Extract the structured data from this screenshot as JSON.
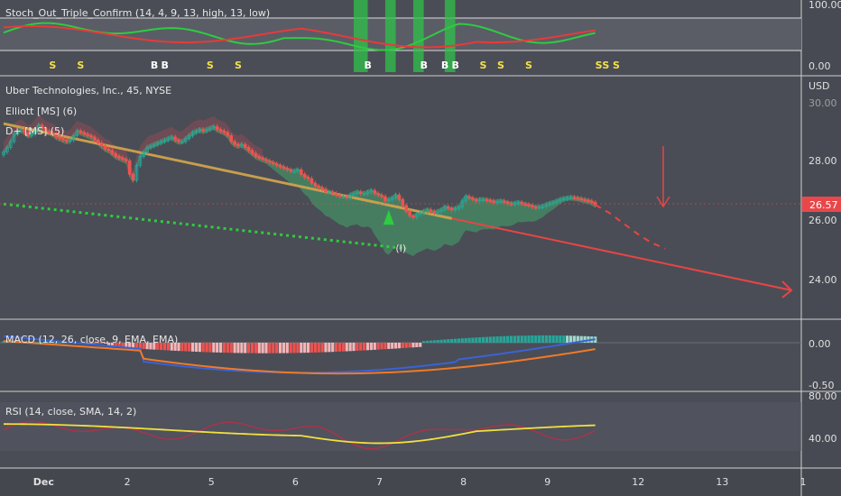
{
  "stoch_panel": {
    "label": "Stoch_Out_Triple_Confirm (14, 4, 9, 13, high, 13, low)",
    "axis": [
      "100.00",
      "0.00"
    ],
    "signals": [
      {
        "t": "S",
        "i": 14,
        "c": "#f5e14a"
      },
      {
        "t": "S",
        "i": 22,
        "c": "#f5e14a"
      },
      {
        "t": "B",
        "i": 43,
        "c": "#ffffff"
      },
      {
        "t": "B",
        "i": 46,
        "c": "#ffffff"
      },
      {
        "t": "S",
        "i": 59,
        "c": "#f5e14a"
      },
      {
        "t": "S",
        "i": 67,
        "c": "#f5e14a"
      },
      {
        "t": "B",
        "i": 104,
        "c": "#ffffff"
      },
      {
        "t": "B",
        "i": 120,
        "c": "#ffffff"
      },
      {
        "t": "B",
        "i": 126,
        "c": "#ffffff"
      },
      {
        "t": "B",
        "i": 129,
        "c": "#ffffff"
      },
      {
        "t": "S",
        "i": 137,
        "c": "#f5e14a"
      },
      {
        "t": "S",
        "i": 142,
        "c": "#f5e14a"
      },
      {
        "t": "S",
        "i": 150,
        "c": "#f5e14a"
      },
      {
        "t": "S",
        "i": 170,
        "c": "#f5e14a"
      },
      {
        "t": "S",
        "i": 172,
        "c": "#f5e14a"
      },
      {
        "t": "S",
        "i": 175,
        "c": "#f5e14a"
      }
    ]
  },
  "price_panel": {
    "title": "Uber Technologies, Inc., 45, NYSE",
    "currency": "USD",
    "indicators": [
      "Elliott [MS] (6)",
      "D+ [MS] (5)"
    ],
    "axis": [
      "28.00",
      "26.00",
      "24.00"
    ],
    "axis_partial": "30.00",
    "last_price": "26.57",
    "last_price_color": "#e8474a",
    "wave_label": "(I)",
    "up_color": "#26a69a",
    "down_color": "#ef5350"
  },
  "macd_panel": {
    "label": "MACD (12, 26, close, 9, EMA, EMA)",
    "axis": [
      "0.00",
      "-0.50"
    ]
  },
  "rsi_panel": {
    "label": "RSI (14, close, SMA, 14, 2)",
    "axis": [
      "80.00",
      "40.00"
    ]
  },
  "time_axis": {
    "labels": [
      {
        "text": "Dec",
        "i": 10
      },
      {
        "text": "2",
        "i": 36
      },
      {
        "text": "5",
        "i": 60
      },
      {
        "text": "6",
        "i": 84
      },
      {
        "text": "7",
        "i": 108
      },
      {
        "text": "8",
        "i": 132
      },
      {
        "text": "9",
        "i": 156
      },
      {
        "text": "12",
        "i": 181
      },
      {
        "text": "13",
        "i": 205
      },
      {
        "text": "1",
        "i": 229
      }
    ]
  },
  "chart_data": {
    "type": "candlestick",
    "closes": [
      28.35,
      28.5,
      28.7,
      28.95,
      29.05,
      29.1,
      29.0,
      28.9,
      28.95,
      29.1,
      29.25,
      29.15,
      29.05,
      29.0,
      28.95,
      28.85,
      28.8,
      28.75,
      28.7,
      28.75,
      28.9,
      29.05,
      29.0,
      28.95,
      28.9,
      28.85,
      28.75,
      28.65,
      28.55,
      28.45,
      28.4,
      28.3,
      28.2,
      28.15,
      28.1,
      28.05,
      27.6,
      27.4,
      27.9,
      28.2,
      28.35,
      28.5,
      28.55,
      28.6,
      28.65,
      28.7,
      28.75,
      28.8,
      28.85,
      28.75,
      28.7,
      28.7,
      28.8,
      28.9,
      29.0,
      29.05,
      29.1,
      29.05,
      29.1,
      29.15,
      29.2,
      29.1,
      29.05,
      29.0,
      28.9,
      28.7,
      28.6,
      28.55,
      28.6,
      28.5,
      28.4,
      28.3,
      28.2,
      28.15,
      28.1,
      28.05,
      28.0,
      27.95,
      27.9,
      27.85,
      27.8,
      27.75,
      27.7,
      27.7,
      27.75,
      27.6,
      27.5,
      27.45,
      27.3,
      27.2,
      27.15,
      27.1,
      27.0,
      27.0,
      26.95,
      26.9,
      26.85,
      26.85,
      26.8,
      26.9,
      26.95,
      27.0,
      26.95,
      26.95,
      27.0,
      27.05,
      26.95,
      26.9,
      26.85,
      26.7,
      26.75,
      26.8,
      26.9,
      26.75,
      26.55,
      26.35,
      26.2,
      26.15,
      26.25,
      26.3,
      26.35,
      26.4,
      26.35,
      26.3,
      26.35,
      26.4,
      26.5,
      26.45,
      26.4,
      26.45,
      26.5,
      26.7,
      26.85,
      26.8,
      26.75,
      26.7,
      26.75,
      26.75,
      26.72,
      26.7,
      26.65,
      26.68,
      26.7,
      26.66,
      26.62,
      26.6,
      26.62,
      26.65,
      26.6,
      26.58,
      26.55,
      26.5,
      26.48,
      26.5,
      26.52,
      26.58,
      26.62,
      26.65,
      26.7,
      26.75,
      26.78,
      26.8,
      26.82,
      26.8,
      26.78,
      26.75,
      26.72,
      26.7,
      26.65,
      26.57
    ],
    "projection": [
      26.57,
      26.3,
      25.95,
      25.6,
      25.3,
      25.1
    ],
    "trendline_start": [
      0,
      29.3
    ],
    "trendline_end": [
      225,
      23.7
    ],
    "support_start": [
      0,
      26.6
    ],
    "support_end": [
      115,
      25.1
    ],
    "y_range": [
      23.0,
      30.5
    ]
  }
}
